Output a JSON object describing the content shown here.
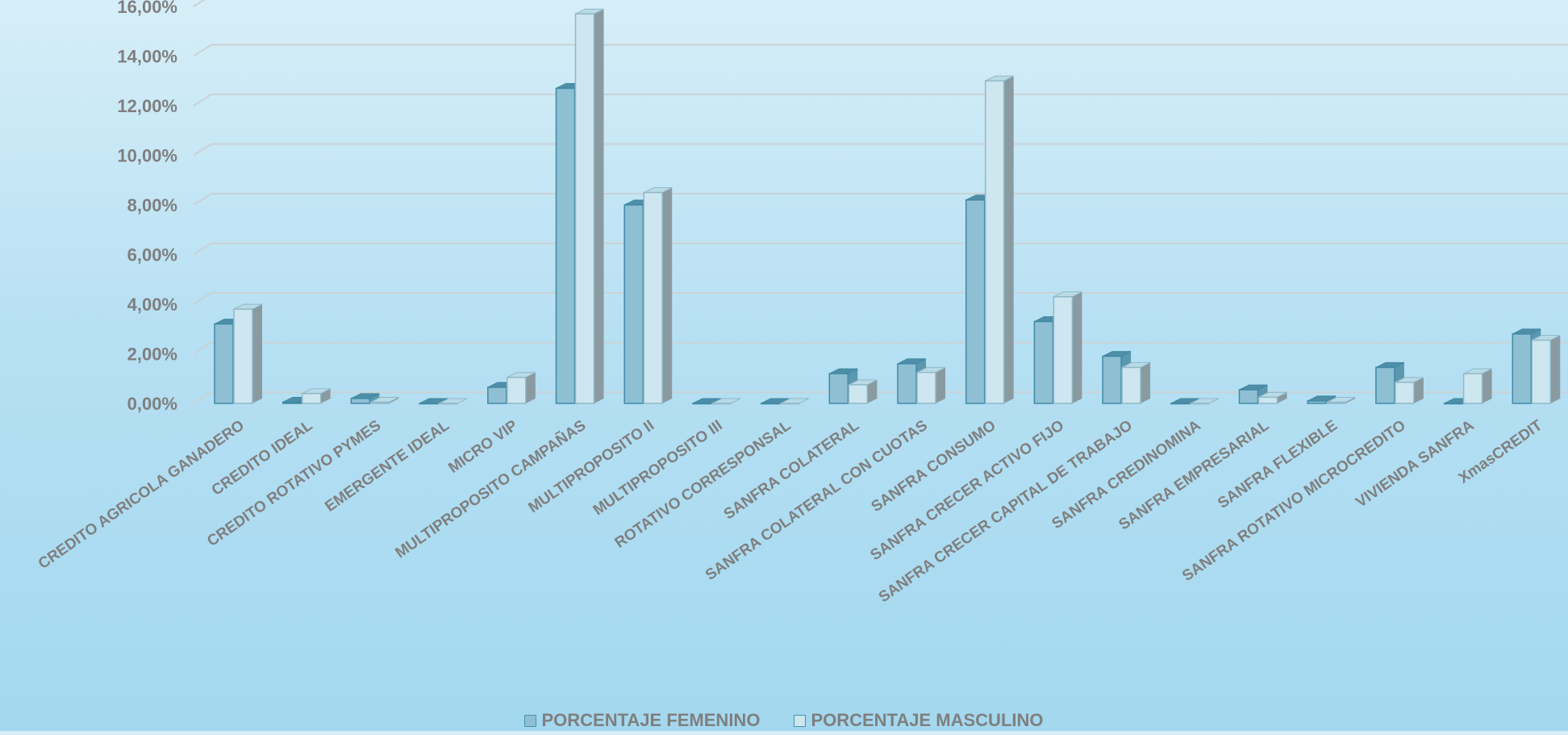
{
  "chart_data": {
    "type": "bar",
    "categories": [
      "CREDITO AGRICOLA GANADERO",
      "CREDITO IDEAL",
      "CREDITO ROTATIVO PYMES",
      "EMERGENTE IDEAL",
      "MICRO VIP",
      "MULTIPROPOSITO CAMPAÑAS",
      "MULTIPROPOSITO II",
      "MULTIPROPOSITO III",
      "ROTATIVO CORRESPONSAL",
      "SANFRA COLATERAL",
      "SANFRA COLATERAL CON CUOTAS",
      "SANFRA CONSUMO",
      "SANFRA CRECER  ACTIVO FIJO",
      "SANFRA CRECER CAPITAL DE TRABAJO",
      "SANFRA CREDINOMINA",
      "SANFRA EMPRESARIAL",
      "SANFRA FLEXIBLE",
      "SANFRA ROTATIVO MICROCREDITO",
      "VIVIENDA SANFRA",
      "XmasCREDIT"
    ],
    "series": [
      {
        "name": "PORCENTAJE FEMENINO",
        "color": "#8fbfd3",
        "values": [
          3.2,
          0.05,
          0.2,
          0.0,
          0.65,
          12.7,
          8.0,
          0.0,
          0.0,
          1.2,
          1.6,
          8.2,
          3.3,
          1.9,
          0.0,
          0.55,
          0.1,
          1.45,
          0.0,
          2.8
        ]
      },
      {
        "name": "PORCENTAJE MASCULINO",
        "color": "#cde6ef",
        "values": [
          3.8,
          0.4,
          0.05,
          0.0,
          1.05,
          15.7,
          8.5,
          0.0,
          0.0,
          0.75,
          1.25,
          13.0,
          4.3,
          1.45,
          0.0,
          0.25,
          0.05,
          0.85,
          1.2,
          2.55
        ]
      }
    ],
    "y_ticks": [
      "0,00%",
      "2,00%",
      "4,00%",
      "6,00%",
      "8,00%",
      "10,00%",
      "12,00%",
      "14,00%",
      "16,00%"
    ],
    "ylim": [
      0,
      16
    ],
    "grid": true,
    "legend": "bottom",
    "title": "",
    "xlabel": "",
    "ylabel": ""
  }
}
